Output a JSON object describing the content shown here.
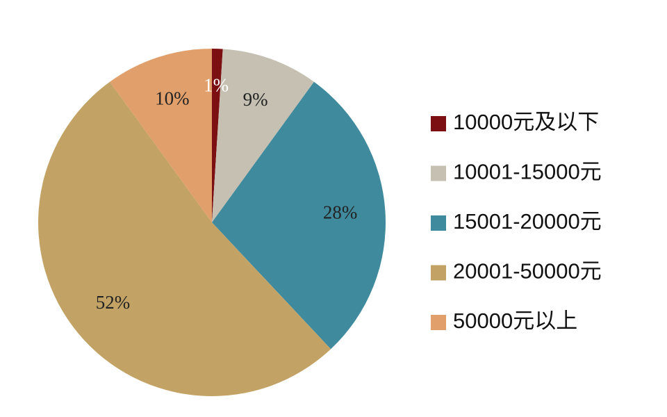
{
  "chart_data": {
    "type": "pie",
    "categories": [
      "10000元及以下",
      "10001-15000元",
      "15001-20000元",
      "20001-50000元",
      "50000元以上"
    ],
    "values": [
      1,
      9,
      28,
      52,
      10
    ],
    "value_labels": [
      "1%",
      "9%",
      "28%",
      "52%",
      "10%"
    ],
    "colors": [
      "#7b0f12",
      "#c5c0b2",
      "#3f8a9d",
      "#c3a365",
      "#e19f6b"
    ],
    "legend": "right"
  }
}
